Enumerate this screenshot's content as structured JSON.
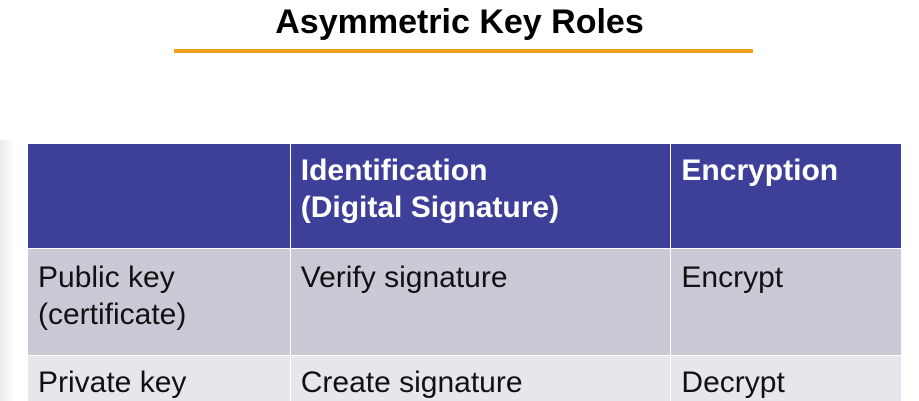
{
  "slide": {
    "title": "Asymmetric Key Roles"
  },
  "table": {
    "headers": [
      "",
      "Identification (Digital Signature)",
      "Encryption"
    ],
    "header_lines": {
      "identification_line1": "Identification",
      "identification_line2": "(Digital Signature)"
    },
    "rows": [
      {
        "key_line1": "Public key",
        "key_line2": "(certificate)",
        "identification": "Verify signature",
        "encryption": "Encrypt"
      },
      {
        "key_line1": "Private key",
        "identification": "Create signature",
        "encryption": "Decrypt"
      }
    ]
  },
  "colors": {
    "header_bg": "#3e3f99",
    "row_odd_bg": "#c9cad6",
    "row_even_bg": "#e6e6ec",
    "title_underline": "#f0a020"
  }
}
